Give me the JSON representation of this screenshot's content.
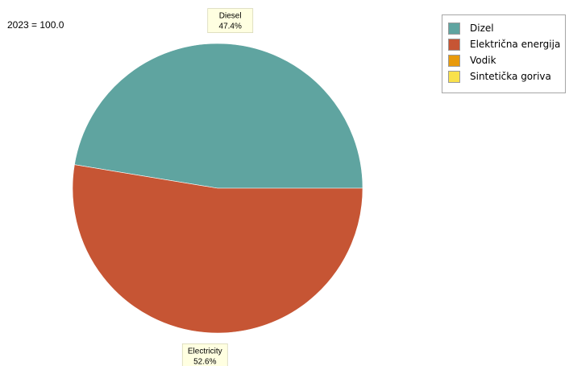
{
  "note": "2023 = 100.0",
  "legend": [
    {
      "label": "Dizel",
      "color": "#5fa4a0"
    },
    {
      "label": "Električna energija",
      "color": "#c65534"
    },
    {
      "label": "Vodik",
      "color": "#e89a0c"
    },
    {
      "label": "Sintetička goriva",
      "color": "#f9e14b"
    }
  ],
  "chart_data": {
    "type": "pie",
    "title": "",
    "categories": [
      "Dizel",
      "Električna energija",
      "Vodik",
      "Sintetička goriva"
    ],
    "values": [
      47.4,
      52.6,
      0,
      0
    ],
    "colors": [
      "#5fa4a0",
      "#c65534",
      "#e89a0c",
      "#f9e14b"
    ],
    "data_labels": [
      {
        "name": "Diesel",
        "value": "47.4%"
      },
      {
        "name": "Electricity",
        "value": "52.6%"
      }
    ],
    "legend_position": "top-right"
  }
}
